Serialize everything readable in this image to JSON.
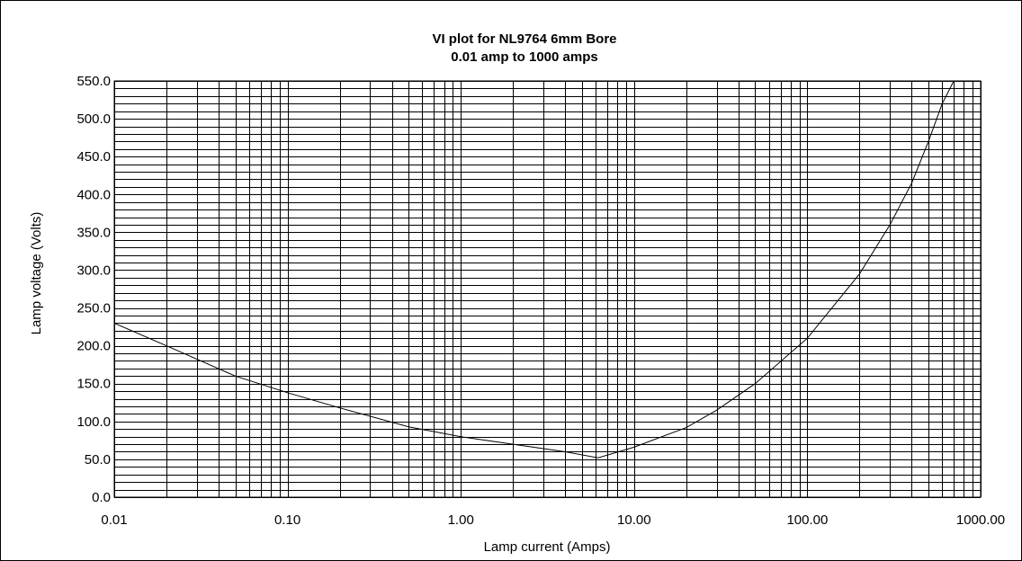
{
  "chart_data": {
    "type": "line",
    "title": "VI plot for NL9764 6mm Bore",
    "subtitle": "0.01 amp to 1000 amps",
    "xlabel": "Lamp current  (Amps)",
    "ylabel": "Lamp voltage  (Volts)",
    "xscale": "log",
    "xlim": [
      0.01,
      1000
    ],
    "ylim": [
      0,
      550
    ],
    "grid": true,
    "legend": "none",
    "x_tick_labels": [
      "0.01",
      "0.10",
      "1.00",
      "10.00",
      "100.00",
      "1000.00"
    ],
    "x_ticks": [
      0.01,
      0.1,
      1,
      10,
      100,
      1000
    ],
    "y_tick_labels": [
      "0.0",
      "50.0",
      "100.0",
      "150.0",
      "200.0",
      "250.0",
      "300.0",
      "350.0",
      "400.0",
      "450.0",
      "500.0",
      "550.0"
    ],
    "y_ticks": [
      0,
      50,
      100,
      150,
      200,
      250,
      300,
      350,
      400,
      450,
      500,
      550
    ],
    "y_minor_ticks": [
      10,
      20,
      30,
      40,
      60,
      70,
      80,
      90,
      110,
      120,
      130,
      140,
      160,
      170,
      180,
      190,
      210,
      220,
      230,
      240,
      260,
      270,
      280,
      290,
      310,
      320,
      330,
      340,
      360,
      370,
      380,
      390,
      410,
      420,
      430,
      440,
      460,
      470,
      480,
      490,
      510,
      520,
      530,
      540
    ],
    "series": [
      {
        "x": [
          0.01,
          0.02,
          0.05,
          0.1,
          0.2,
          0.5,
          1,
          2,
          4,
          6.2,
          10,
          20,
          30,
          50,
          100,
          200,
          300,
          400,
          500,
          600,
          700
        ],
        "y": [
          230,
          200,
          160,
          138,
          118,
          93,
          80,
          70,
          60,
          52,
          66,
          92,
          115,
          150,
          210,
          295,
          360,
          415,
          470,
          520,
          560
        ]
      }
    ]
  }
}
